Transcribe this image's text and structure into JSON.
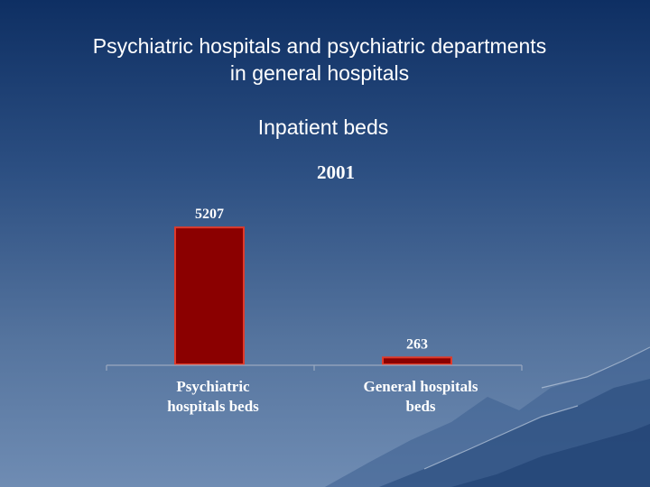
{
  "slide": {
    "title_line1": "Psychiatric hospitals and psychiatric departments",
    "title_line2": "in general hospitals",
    "subtitle": "Inpatient beds"
  },
  "chart_data": {
    "type": "bar",
    "title": "2001",
    "categories": [
      "Psychiatric hospitals beds",
      "General hospitals beds"
    ],
    "values": [
      5207,
      263
    ],
    "data_labels": [
      "5207",
      "263"
    ],
    "ylim": [
      0,
      5900
    ],
    "grid": false,
    "legend": "none",
    "bar_color": "#8b0000",
    "bar_edge_color": "#e03a2a",
    "axis_color": "#9aa9c0"
  }
}
